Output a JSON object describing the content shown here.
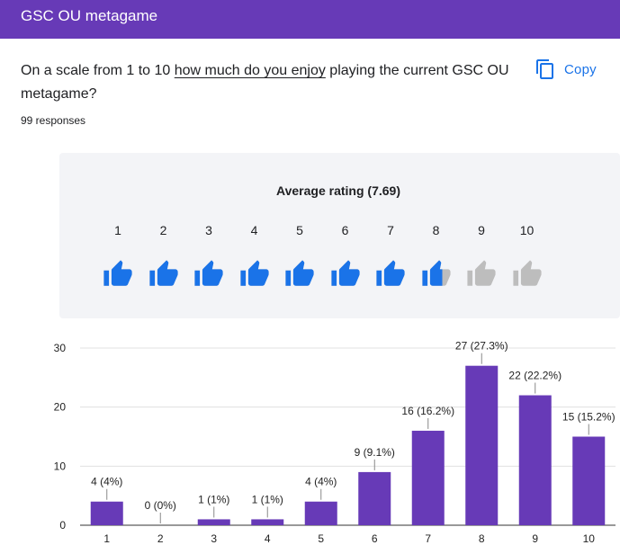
{
  "header": {
    "title": "GSC OU metagame"
  },
  "question": {
    "text_before": "On a scale from 1 to 10 ",
    "text_underlined": "how much do you enjoy",
    "text_after": " playing the current GSC OU metagame?",
    "responses": "99 responses"
  },
  "copy_button": {
    "label": "Copy",
    "icon": "copy-icon"
  },
  "rating": {
    "average_label": "Average rating (7.69)",
    "average": 7.69,
    "scale": [
      "1",
      "2",
      "3",
      "4",
      "5",
      "6",
      "7",
      "8",
      "9",
      "10"
    ],
    "icon": "thumbs-up-icon",
    "filled_color": "#1a73e8",
    "empty_color": "#bdbdbd"
  },
  "colors": {
    "header_bg": "#673ab7",
    "accent": "#1a73e8",
    "bar": "#673ab7"
  },
  "chart_data": {
    "type": "bar",
    "categories": [
      "1",
      "2",
      "3",
      "4",
      "5",
      "6",
      "7",
      "8",
      "9",
      "10"
    ],
    "values": [
      4,
      0,
      1,
      1,
      4,
      9,
      16,
      27,
      22,
      15
    ],
    "data_labels": [
      "4 (4%)",
      "0 (0%)",
      "1 (1%)",
      "1 (1%)",
      "4 (4%)",
      "9 (9.1%)",
      "16 (16.2%)",
      "27 (27.3%)",
      "22 (22.2%)",
      "15 (15.2%)"
    ],
    "yticks": [
      "0",
      "10",
      "20",
      "30"
    ],
    "ylim": [
      0,
      30
    ],
    "grid": true,
    "bar_color": "#673ab7"
  }
}
